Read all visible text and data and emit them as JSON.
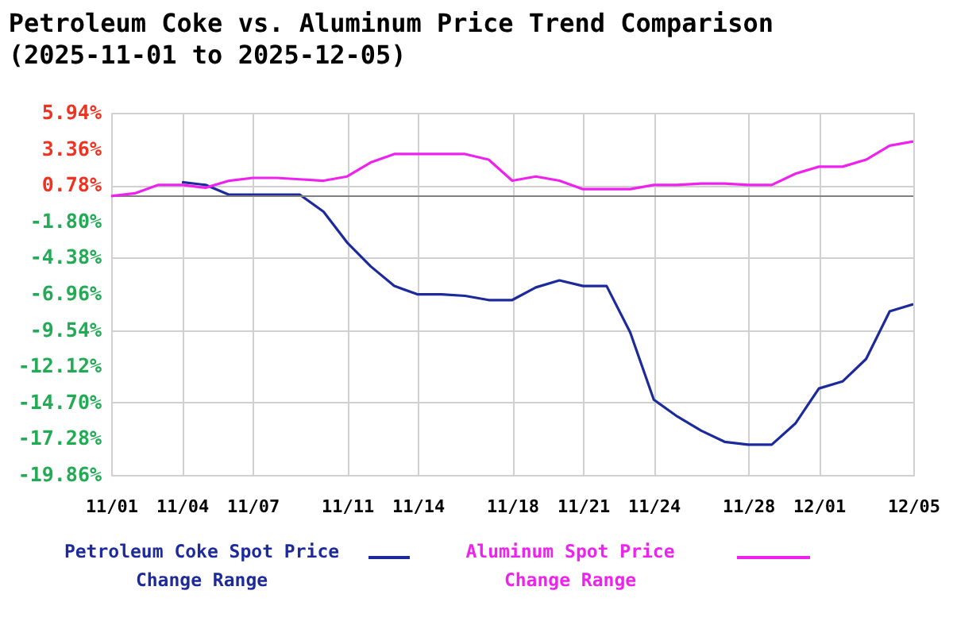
{
  "chart_data": {
    "type": "line",
    "title": "Petroleum Coke vs. Aluminum Price Trend Comparison",
    "subtitle": "(2025-11-01 to 2025-12-05)",
    "x": [
      "2025-11-01",
      "2025-11-02",
      "2025-11-03",
      "2025-11-04",
      "2025-11-05",
      "2025-11-06",
      "2025-11-07",
      "2025-11-08",
      "2025-11-09",
      "2025-11-10",
      "2025-11-11",
      "2025-11-12",
      "2025-11-13",
      "2025-11-14",
      "2025-11-15",
      "2025-11-16",
      "2025-11-17",
      "2025-11-18",
      "2025-11-19",
      "2025-11-20",
      "2025-11-21",
      "2025-11-22",
      "2025-11-23",
      "2025-11-24",
      "2025-11-25",
      "2025-11-26",
      "2025-11-27",
      "2025-11-28",
      "2025-11-29",
      "2025-11-30",
      "2025-12-01",
      "2025-12-02",
      "2025-12-03",
      "2025-12-04",
      "2025-12-05"
    ],
    "xlim": [
      "2025-11-01",
      "2025-12-05"
    ],
    "xticks": [
      {
        "value": "2025-11-01",
        "label": "11/01"
      },
      {
        "value": "2025-11-04",
        "label": "11/04"
      },
      {
        "value": "2025-11-07",
        "label": "11/07"
      },
      {
        "value": "2025-11-11",
        "label": "11/11"
      },
      {
        "value": "2025-11-14",
        "label": "11/14"
      },
      {
        "value": "2025-11-18",
        "label": "11/18"
      },
      {
        "value": "2025-11-21",
        "label": "11/21"
      },
      {
        "value": "2025-11-24",
        "label": "11/24"
      },
      {
        "value": "2025-11-28",
        "label": "11/28"
      },
      {
        "value": "2025-12-01",
        "label": "12/01"
      },
      {
        "value": "2025-12-05",
        "label": "12/05"
      }
    ],
    "ylim": [
      -19.86,
      5.94
    ],
    "yticks": [
      {
        "value": 5.94,
        "label": "5.94%"
      },
      {
        "value": 3.36,
        "label": "3.36%"
      },
      {
        "value": 0.78,
        "label": "0.78%"
      },
      {
        "value": -1.8,
        "label": "-1.80%"
      },
      {
        "value": -4.38,
        "label": "-4.38%"
      },
      {
        "value": -6.96,
        "label": "-6.96%"
      },
      {
        "value": -9.54,
        "label": "-9.54%"
      },
      {
        "value": -12.12,
        "label": "-12.12%"
      },
      {
        "value": -14.7,
        "label": "-14.70%"
      },
      {
        "value": -17.28,
        "label": "-17.28%"
      },
      {
        "value": -19.86,
        "label": "-19.86%"
      }
    ],
    "grid": true,
    "legend": "bottom",
    "marker": "none",
    "line_style": "solid",
    "ref_lines": [
      {
        "axis": "y",
        "value": 0,
        "color": "#808080"
      }
    ],
    "series": [
      {
        "name": "Petroleum Coke Spot Price Change Range",
        "color": "#1c2a9c",
        "values": [
          null,
          null,
          null,
          1.0,
          0.8,
          0.1,
          0.1,
          0.1,
          0.1,
          -1.1,
          -3.3,
          -5.0,
          -6.4,
          -7.0,
          -7.0,
          -7.1,
          -7.4,
          -7.4,
          -6.5,
          -6.0,
          -6.4,
          -6.4,
          -9.7,
          -14.5,
          -15.7,
          -16.7,
          -17.5,
          -17.7,
          -17.7,
          -16.2,
          -13.7,
          -13.2,
          -11.6,
          -8.2,
          -7.7
        ]
      },
      {
        "name": "Aluminum Spot Price Change Range",
        "color": "#ee22ee",
        "values": [
          0,
          0.2,
          0.8,
          0.8,
          0.6,
          1.1,
          1.3,
          1.3,
          1.2,
          1.1,
          1.4,
          2.4,
          3.0,
          3.0,
          3.0,
          3.0,
          2.6,
          1.1,
          1.4,
          1.1,
          0.5,
          0.5,
          0.5,
          0.8,
          0.8,
          0.9,
          0.9,
          0.8,
          0.8,
          1.6,
          2.1,
          2.1,
          2.6,
          3.6,
          3.9
        ]
      }
    ]
  }
}
